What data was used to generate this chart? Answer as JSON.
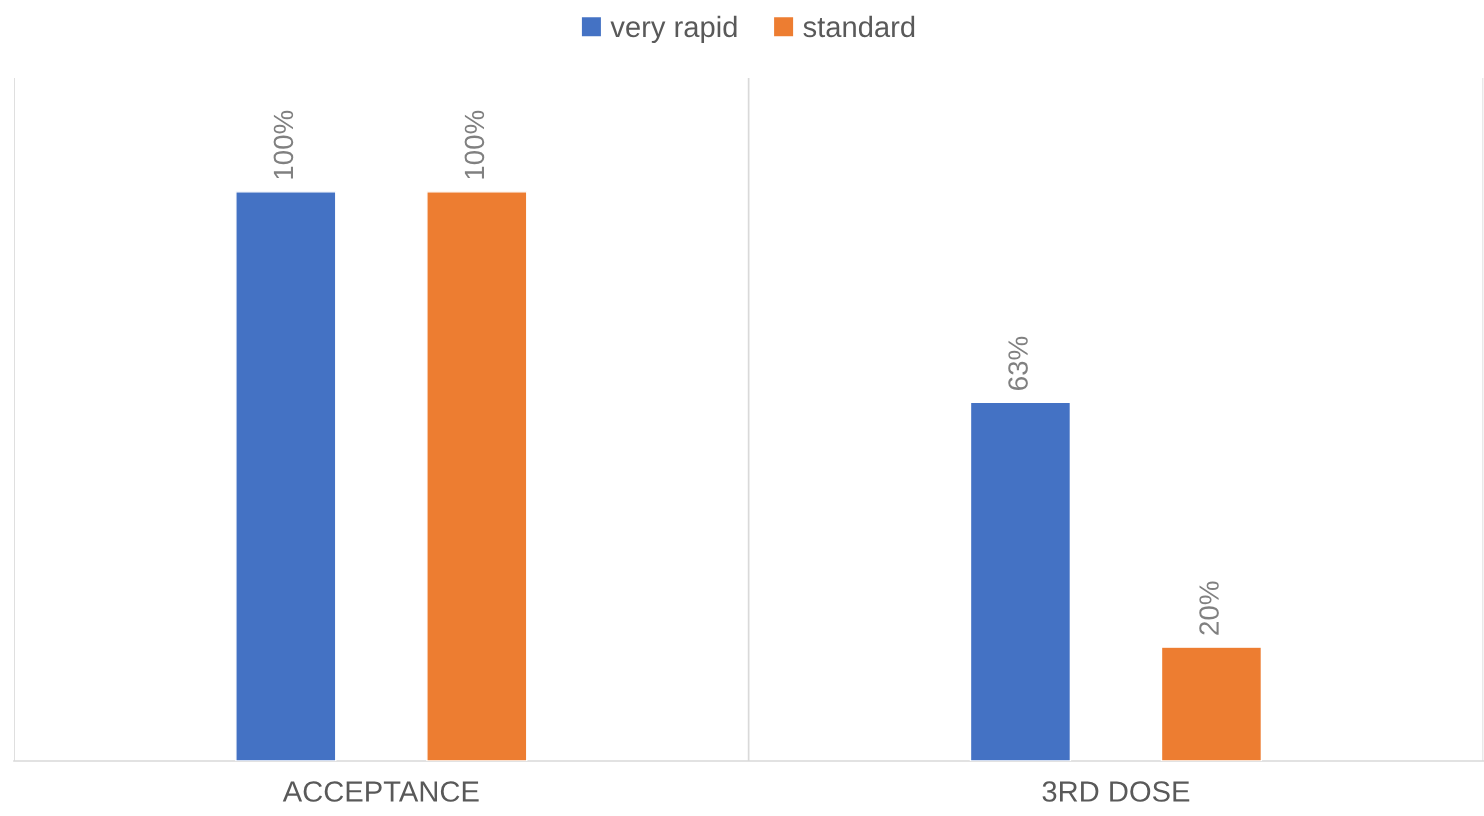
{
  "chart_data": {
    "type": "bar",
    "categories": [
      "ACCEPTANCE",
      "3RD DOSE"
    ],
    "series": [
      {
        "name": "very rapid",
        "color": "#4472c4",
        "values": [
          100,
          63
        ],
        "value_labels": [
          "100%",
          "63%"
        ]
      },
      {
        "name": "standard",
        "color": "#ed7d31",
        "values": [
          100,
          20
        ],
        "value_labels": [
          "100%",
          "20%"
        ]
      }
    ],
    "ylim": [
      0,
      120
    ],
    "grid": "x",
    "legend": "top",
    "tick_labels": "x"
  }
}
